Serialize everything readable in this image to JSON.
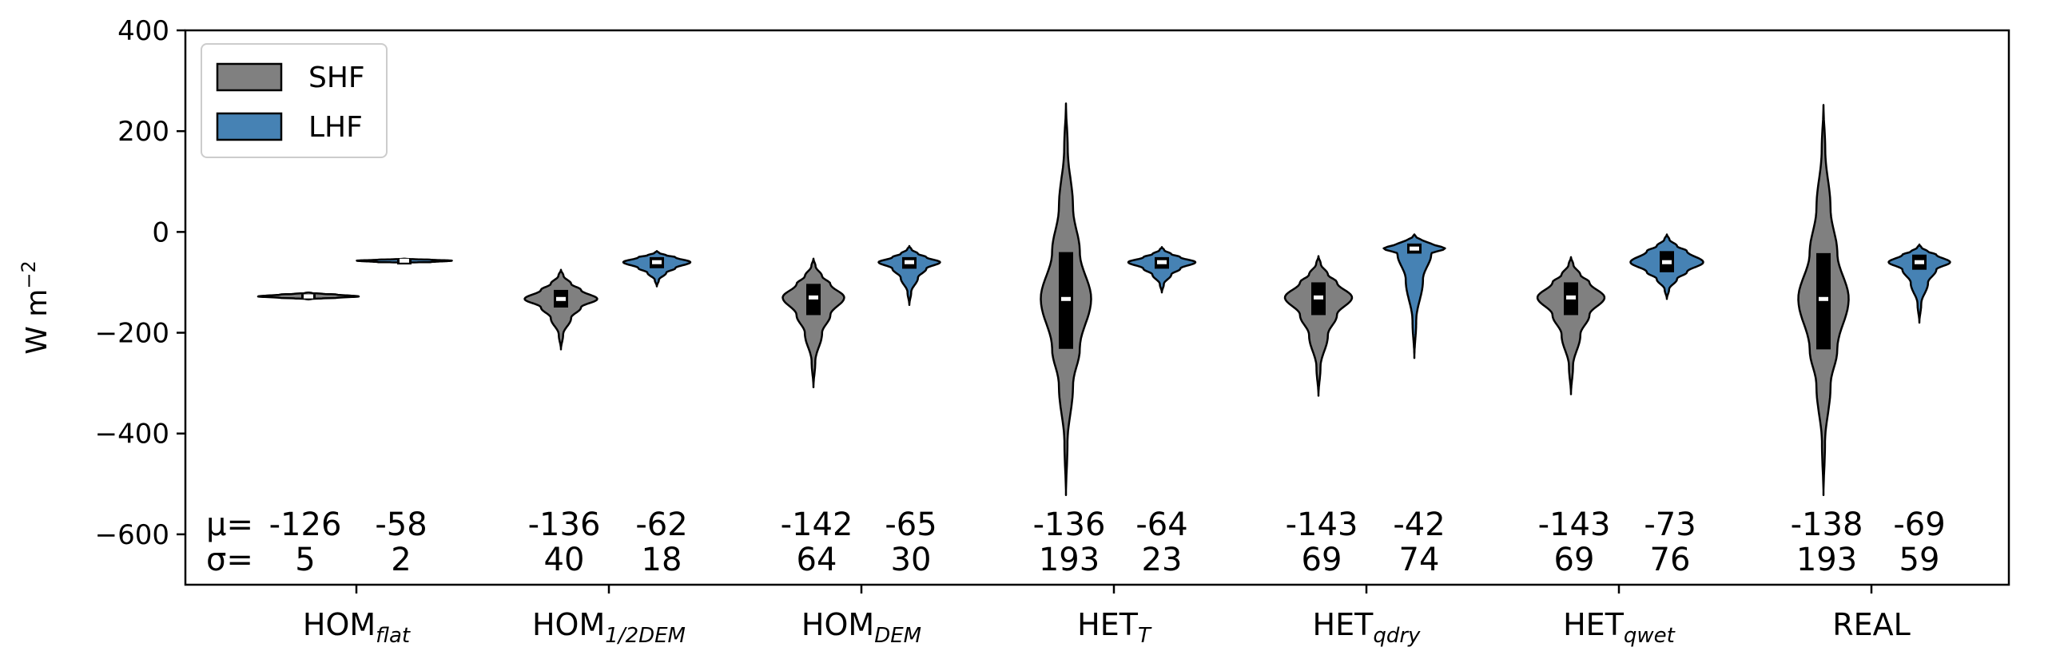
{
  "chart_data": {
    "type": "violin",
    "ylabel_base": "W m",
    "ylabel_exp": "−2",
    "ylim": [
      -700,
      400
    ],
    "yticks": [
      400,
      200,
      0,
      -200,
      -400,
      -600
    ],
    "ytick_labels": [
      "400",
      "200",
      "0",
      "−200",
      "−400",
      "−600"
    ],
    "grid": false,
    "legend": {
      "position": "top-left",
      "entries": [
        {
          "label": "SHF",
          "color": "#808080"
        },
        {
          "label": "LHF",
          "color": "#4682b4"
        }
      ]
    },
    "annotation_labels": {
      "mu": "μ=",
      "sigma": "σ="
    },
    "categories": [
      {
        "main": "HOM",
        "sub": "flat",
        "sub_italic": true
      },
      {
        "main": "HOM",
        "sub": "1/2DEM",
        "sub_italic": true
      },
      {
        "main": "HOM",
        "sub": "DEM",
        "sub_italic": true
      },
      {
        "main": "HET",
        "sub": "T",
        "sub_italic": true
      },
      {
        "main": "HET",
        "sub": "qdry",
        "sub_italic": true
      },
      {
        "main": "HET",
        "sub": "qwet",
        "sub_italic": true
      },
      {
        "main": "REAL",
        "sub": "",
        "sub_italic": false
      }
    ],
    "series": [
      {
        "name": "SHF",
        "color": "#808080",
        "mean": [
          -126,
          -136,
          -142,
          -136,
          -143,
          -143,
          -138
        ],
        "std": [
          5,
          40,
          64,
          193,
          69,
          69,
          193
        ],
        "median": [
          -128,
          -133,
          -130,
          -133,
          -130,
          -130,
          -133
        ],
        "q1": [
          -131,
          -150,
          -165,
          -232,
          -165,
          -165,
          -233
        ],
        "q3": [
          -124,
          -115,
          -103,
          -40,
          -100,
          -100,
          -42
        ],
        "min": [
          -134,
          -233,
          -308,
          -522,
          -325,
          -322,
          -522
        ],
        "max": [
          -120,
          -75,
          -53,
          255,
          -48,
          -50,
          252
        ],
        "peak_width": [
          0.9,
          0.65,
          0.55,
          0.45,
          0.6,
          0.6,
          0.45
        ]
      },
      {
        "name": "LHF",
        "color": "#4682b4",
        "mean": [
          -58,
          -62,
          -65,
          -64,
          -42,
          -73,
          -69
        ],
        "std": [
          2,
          18,
          30,
          23,
          74,
          76,
          59
        ],
        "median": [
          -57,
          -60,
          -60,
          -60,
          -33,
          -60,
          -60
        ],
        "q1": [
          -60,
          -72,
          -73,
          -73,
          -43,
          -80,
          -75
        ],
        "q3": [
          -55,
          -50,
          -50,
          -50,
          -23,
          -38,
          -45
        ],
        "min": [
          -61,
          -108,
          -145,
          -120,
          -250,
          -133,
          -180
        ],
        "max": [
          -53,
          -38,
          -28,
          -30,
          -5,
          -5,
          -25
        ],
        "peak_width": [
          0.85,
          0.6,
          0.55,
          0.6,
          0.55,
          0.65,
          0.55
        ]
      }
    ]
  }
}
